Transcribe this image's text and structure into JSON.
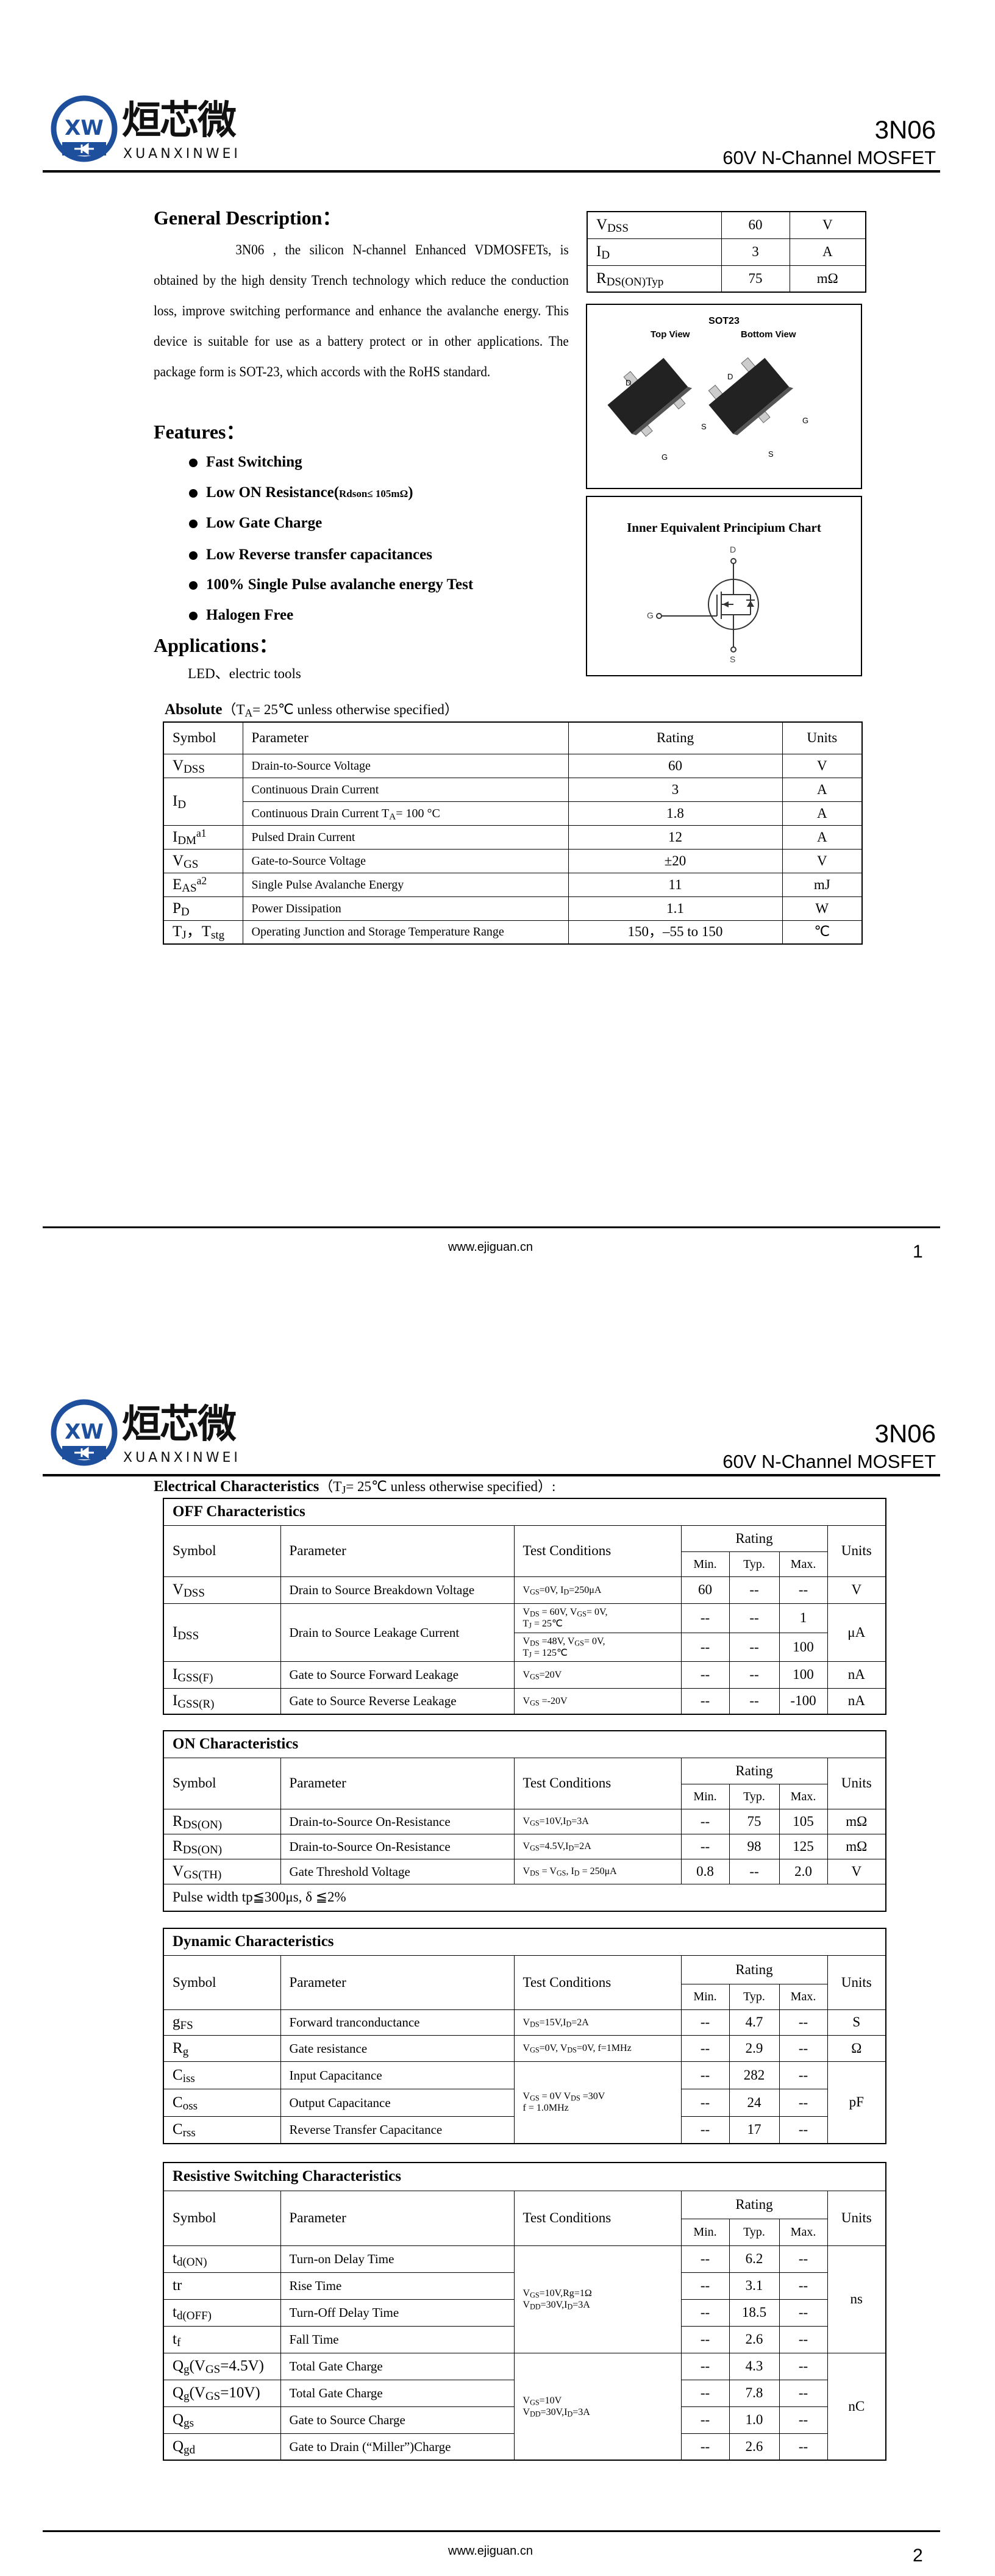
{
  "brand": {
    "logo_mark": "XW",
    "logo_cjk": "烜芯微",
    "logo_en": "XUANXINWEI",
    "color": "#1d4f9c"
  },
  "header": {
    "part": "3N06",
    "subtitle": "60V N-Channel MOSFET"
  },
  "footer": {
    "url": "www.ejiguan.cn",
    "page1": "1",
    "page2": "2"
  },
  "page1": {
    "general_title": "General Description：",
    "description": "3N06 , the silicon N-channel Enhanced VDMOSFETs, is obtained by the high density Trench technology which reduce the conduction loss, improve switching performance and enhance the avalanche energy. This device is suitable for use as a battery protect or in other applications. The package form is SOT-23, which accords with the RoHS standard.",
    "features_title": "Features：",
    "features": [
      {
        "text": "Fast Switching"
      },
      {
        "text": "Low ON Resistance(",
        "small": "Rdson≤ 105mΩ",
        "tail": ")"
      },
      {
        "text": "Low Gate Charge"
      },
      {
        "text": "Low Reverse transfer capacitances"
      },
      {
        "text": "100% Single Pulse avalanche energy Test"
      },
      {
        "text": "Halogen Free"
      }
    ],
    "applications_title": "Applications：",
    "applications": "LED、electric tools",
    "summary": [
      {
        "symbol": "V_{DSS}",
        "value": "60",
        "unit": "V"
      },
      {
        "symbol": "I_{D}",
        "value": "3",
        "unit": "A"
      },
      {
        "symbol": "R_{DS(ON)Typ}",
        "value": "75",
        "unit": "mΩ"
      }
    ],
    "package": {
      "title": "SOT23",
      "top_view": "Top View",
      "bottom_view": "Bottom View",
      "pins": {
        "d": "D",
        "g": "G",
        "s": "S"
      }
    },
    "schematic": {
      "title": "Inner Equivalent Principium Chart",
      "d": "D",
      "g": "G",
      "s": "S"
    },
    "absolute": {
      "title_bold": "Absolute",
      "title_rest": "（T_{A}= 25℃  unless otherwise specified）",
      "headers": {
        "symbol": "Symbol",
        "parameter": "Parameter",
        "rating": "Rating",
        "units": "Units"
      },
      "rows": [
        {
          "symbol": "V_{DSS}",
          "param": "Drain-to-Source Voltage",
          "rating": "60",
          "unit": "V"
        },
        {
          "symbol": {
            "t": "I_{D}",
            "rs": 2
          },
          "param": "Continuous Drain Current",
          "rating": "3",
          "unit": "A"
        },
        {
          "param": "Continuous Drain Current T_{A}= 100 °C",
          "rating": "1.8",
          "unit": "A"
        },
        {
          "symbol": "I_{DM}^{a1}",
          "param": "Pulsed Drain Current",
          "rating": "12",
          "unit": "A"
        },
        {
          "symbol": "V_{GS}",
          "param": "Gate-to-Source Voltage",
          "rating": "±20",
          "unit": "V"
        },
        {
          "symbol": "E_{AS}^{a2}",
          "param": "Single Pulse Avalanche Energy",
          "rating": "11",
          "unit": "mJ"
        },
        {
          "symbol": "P_{D}",
          "param": "Power Dissipation",
          "rating": "1.1",
          "unit": "W"
        },
        {
          "symbol": "T_{J}，T_{stg}",
          "param": "Operating Junction and Storage Temperature Range",
          "rating": "150，–55 to 150",
          "unit": "℃"
        }
      ]
    }
  },
  "page2": {
    "title_bold": "Electrical Characteristics",
    "title_rest": "（T_{J}= 25℃  unless otherwise specified）:",
    "headers": {
      "symbol": "Symbol",
      "parameter": "Parameter",
      "conditions": "Test Conditions",
      "rating": "Rating",
      "min": "Min.",
      "typ": "Typ.",
      "max": "Max.",
      "units": "Units"
    },
    "tables": [
      {
        "title": "OFF Characteristics",
        "rows": [
          {
            "symbol": "V_{DSS}",
            "param": "Drain to Source Breakdown Voltage",
            "cond": "V_{GS}=0V, I_{D}=250μA",
            "min": "60",
            "typ": "--",
            "max": "--",
            "unit": "V"
          },
          {
            "symbol": {
              "t": "I_{DSS}",
              "rs": 2
            },
            "param": {
              "t": "Drain to Source Leakage Current",
              "rs": 2
            },
            "cond": "V_{DS} = 60V, V_{GS}= 0V,\nT_{J} = 25℃",
            "min": "--",
            "typ": "--",
            "max": "1",
            "unit": {
              "t": "μA",
              "rs": 2
            }
          },
          {
            "cond": "V_{DS} =48V, V_{GS}= 0V,\nT_{J} = 125℃",
            "min": "--",
            "typ": "--",
            "max": "100"
          },
          {
            "symbol": "I_{GSS(F)}",
            "param": "Gate to Source Forward Leakage",
            "cond": "V_{GS}=20V",
            "min": "--",
            "typ": "--",
            "max": "100",
            "unit": "nA"
          },
          {
            "symbol": "I_{GSS(R)}",
            "param": "Gate to Source Reverse Leakage",
            "cond": "V_{GS} =-20V",
            "min": "--",
            "typ": "--",
            "max": "-100",
            "unit": "nA"
          }
        ]
      },
      {
        "title": "ON Characteristics",
        "note": "Pulse width tp≦300μs, δ ≦2%",
        "rows": [
          {
            "symbol": "R_{DS(ON)}",
            "param": "Drain-to-Source On-Resistance",
            "cond": "V_{GS}=10V,I_{D}=3A",
            "min": "--",
            "typ": "75",
            "max": "105",
            "unit": "mΩ"
          },
          {
            "symbol": "R_{DS(ON)}",
            "param": "Drain-to-Source On-Resistance",
            "cond": "V_{GS}=4.5V,I_{D}=2A",
            "min": "--",
            "typ": "98",
            "max": "125",
            "unit": "mΩ"
          },
          {
            "symbol": "V_{GS(TH)}",
            "param": "Gate Threshold Voltage",
            "cond": "V_{DS} = V_{GS}, I_{D} = 250μA",
            "min": "0.8",
            "typ": "--",
            "max": "2.0",
            "unit": "V"
          }
        ]
      },
      {
        "title": "Dynamic Characteristics",
        "rows": [
          {
            "symbol": "g_{FS}",
            "param": "Forward tranconductance",
            "cond": "V_{DS}=15V,I_{D}=2A",
            "min": "--",
            "typ": "4.7",
            "max": "--",
            "unit": "S"
          },
          {
            "symbol": "R_{g}",
            "param": "Gate resistance",
            "cond": "V_{GS}=0V, V_{DS}=0V, f=1MHz",
            "min": "--",
            "typ": "2.9",
            "max": "--",
            "unit": "Ω"
          },
          {
            "symbol": "C_{iss}",
            "param": "Input Capacitance",
            "cond": {
              "t": "V_{GS} = 0V V_{DS} =30V\nf = 1.0MHz",
              "rs": 3
            },
            "min": "--",
            "typ": "282",
            "max": "--",
            "unit": {
              "t": "pF",
              "rs": 3
            }
          },
          {
            "symbol": "C_{oss}",
            "param": "Output Capacitance",
            "min": "--",
            "typ": "24",
            "max": "--"
          },
          {
            "symbol": "C_{rss}",
            "param": "Reverse Transfer Capacitance",
            "min": "--",
            "typ": "17",
            "max": "--"
          }
        ]
      },
      {
        "title": "Resistive Switching Characteristics",
        "rows": [
          {
            "symbol": "t_{d(ON)}",
            "param": "Turn-on Delay Time",
            "cond": {
              "t": "V_{GS}=10V,Rg=1Ω\nV_{DD}=30V,I_{D}=3A",
              "rs": 4
            },
            "min": "--",
            "typ": "6.2",
            "max": "--",
            "unit": {
              "t": "ns",
              "rs": 4
            }
          },
          {
            "symbol": "tr",
            "param": "Rise Time",
            "min": "--",
            "typ": "3.1",
            "max": "--"
          },
          {
            "symbol": "t_{d(OFF)}",
            "param": "Turn-Off Delay Time",
            "min": "--",
            "typ": "18.5",
            "max": "--"
          },
          {
            "symbol": "t_{f}",
            "param": "Fall Time",
            "min": "--",
            "typ": "2.6",
            "max": "--"
          },
          {
            "symbol": "Q_{g}(V_{GS}=4.5V)",
            "param": "Total Gate Charge",
            "cond": {
              "t": "V_{GS}=10V\nV_{DD}=30V,I_{D}=3A",
              "rs": 4
            },
            "min": "--",
            "typ": "4.3",
            "max": "--",
            "unit": {
              "t": "nC",
              "rs": 4
            }
          },
          {
            "symbol": "Q_{g}(V_{GS}=10V)",
            "param": "Total Gate Charge",
            "min": "--",
            "typ": "7.8",
            "max": "--"
          },
          {
            "symbol": "Q_{gs}",
            "param": "Gate to Source Charge",
            "min": "--",
            "typ": "1.0",
            "max": "--"
          },
          {
            "symbol": "Q_{gd}",
            "param": "Gate to Drain (“Miller”)Charge",
            "min": "--",
            "typ": "2.6",
            "max": "--"
          }
        ]
      }
    ]
  }
}
